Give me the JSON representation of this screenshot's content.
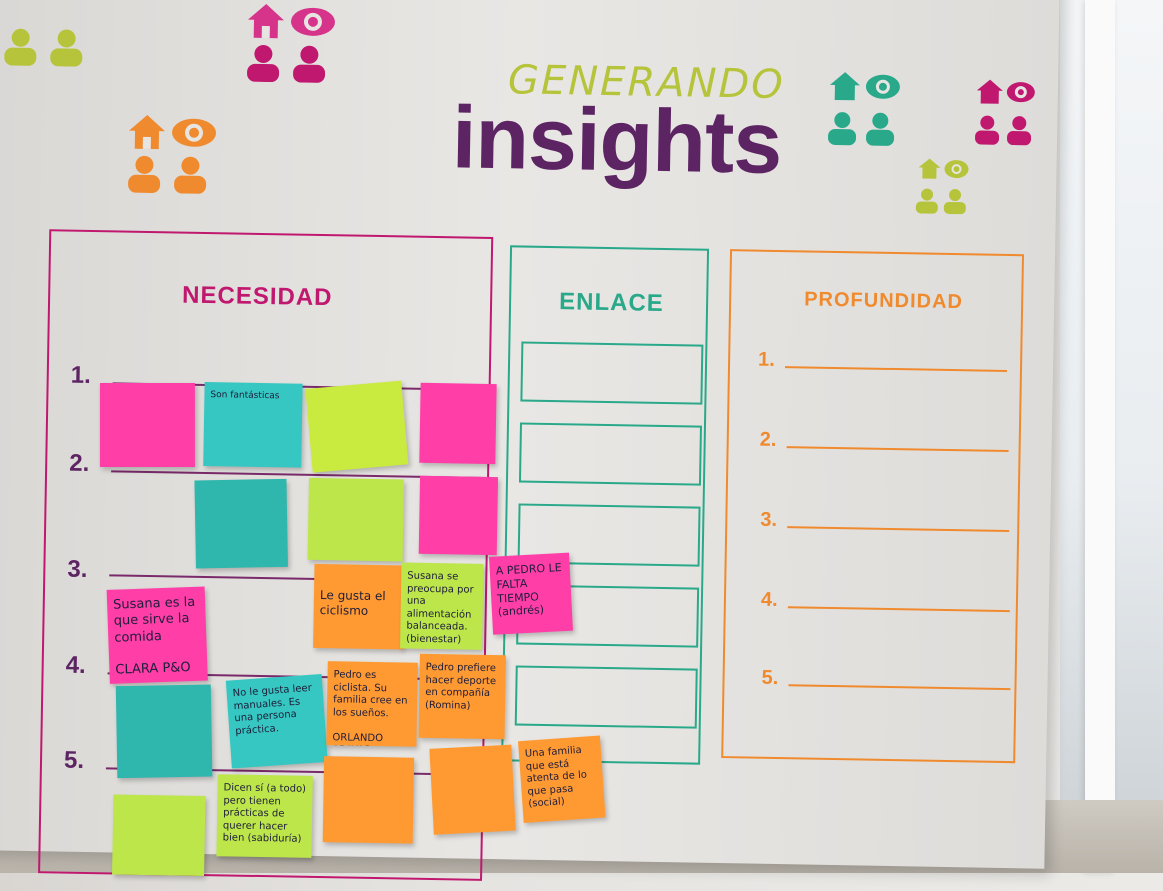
{
  "title": {
    "small": "GENERANDO",
    "big": "insights"
  },
  "columns": {
    "necesidad": "NECESIDAD",
    "enlace": "ENLACE",
    "profundidad": "PROFUNDIDAD"
  },
  "row_numbers": [
    "1.",
    "2.",
    "3.",
    "4.",
    "5."
  ],
  "colors": {
    "magenta": "#c0186f",
    "teal": "#2aa98a",
    "orange": "#f08a2e",
    "lime": "#b6c43c",
    "purple": "#5d2463"
  },
  "icons": [
    "house-icon",
    "eye-icon",
    "person-icon"
  ],
  "notes": {
    "n_big_pink": "A PEDRO LE FALTA TIEMPO",
    "n_big_pink_author": "(andrés)",
    "n_r1c2": "Son fantásticas",
    "n_r3c1": "Susana es la que sirve la comida",
    "n_r3c1_author": "CLARA P&O",
    "n_r3c2": "Le gusta el ciclismo",
    "n_r3c3": "Susana se preocupa por una alimentación balanceada. (bienestar)",
    "n_r4c2": "No le gusta leer manuales. Es una persona práctica.",
    "n_r4c3": "Pedro es ciclista. Su familia cree en los sueños.",
    "n_r4c3_author": "ORLANDO ARAYAS",
    "n_r4c4": "Pedro prefiere hacer deporte en compañía",
    "n_r4c4_author": "(Romina)",
    "n_r5c1": "Dicen sí (a todo) pero tienen prácticas de querer hacer bien (sabiduría)",
    "n_r5c5": "Una familia que está atenta de lo que pasa (social)"
  }
}
